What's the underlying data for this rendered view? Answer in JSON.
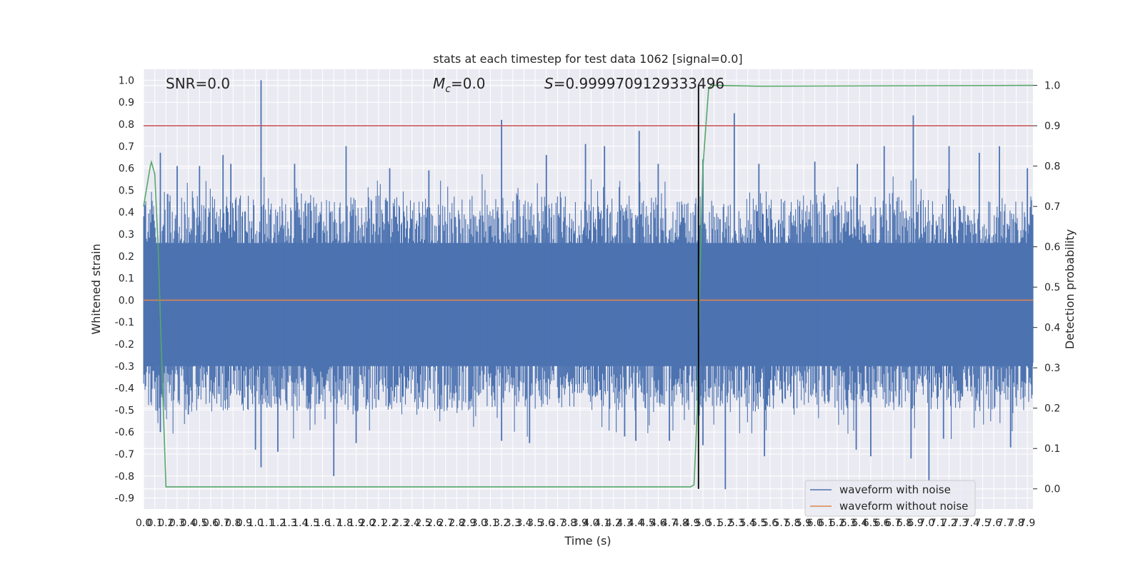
{
  "chart_data": {
    "type": "line",
    "title": "stats at each timestep for test data 1062 [signal=0.0]",
    "xlabel": "Time (s)",
    "ylabel_left": "Whitened strain",
    "ylabel_right": "Detection probability",
    "xlim": [
      0.0,
      7.95
    ],
    "ylim_left": [
      -0.95,
      1.05
    ],
    "ylim_right": [
      -0.05,
      1.04
    ],
    "x_ticks": [
      "0.0",
      "0.1",
      "0.2",
      "0.3",
      "0.4",
      "0.5",
      "0.6",
      "0.7",
      "0.8",
      "0.9",
      "1.0",
      "1.1",
      "1.2",
      "1.3",
      "1.4",
      "1.5",
      "1.6",
      "1.7",
      "1.8",
      "1.9",
      "2.0",
      "2.1",
      "2.2",
      "2.3",
      "2.4",
      "2.5",
      "2.6",
      "2.7",
      "2.8",
      "2.9",
      "3.0",
      "3.1",
      "3.2",
      "3.3",
      "3.4",
      "3.5",
      "3.6",
      "3.7",
      "3.8",
      "3.9",
      "4.0",
      "4.1",
      "4.2",
      "4.3",
      "4.4",
      "4.5",
      "4.6",
      "4.7",
      "4.8",
      "4.9",
      "5.0",
      "5.1",
      "5.2",
      "5.3",
      "5.4",
      "5.5",
      "5.6",
      "5.7",
      "5.8",
      "5.9",
      "6.0",
      "6.1",
      "6.2",
      "6.3",
      "6.4",
      "6.5",
      "6.6",
      "6.7",
      "6.8",
      "6.9",
      "7.0",
      "7.1",
      "7.2",
      "7.3",
      "7.4",
      "7.5",
      "7.6",
      "7.7",
      "7.8",
      "7.9"
    ],
    "y_ticks_left": [
      "1.0",
      "0.9",
      "0.8",
      "0.7",
      "0.6",
      "0.5",
      "0.4",
      "0.3",
      "0.2",
      "0.1",
      "0.0",
      "-0.1",
      "-0.2",
      "-0.3",
      "-0.4",
      "-0.5",
      "-0.6",
      "-0.7",
      "-0.8",
      "-0.9"
    ],
    "y_ticks_right": [
      "1.0",
      "0.9",
      "0.8",
      "0.7",
      "0.6",
      "0.5",
      "0.4",
      "0.3",
      "0.2",
      "0.1",
      "0.0"
    ],
    "annotations": {
      "snr": "SNR=0.0",
      "mc": "=0.0",
      "mc_symbol": "M",
      "mc_sub": "c",
      "s": "=0.9999709129333496",
      "s_symbol": "S"
    },
    "legend": {
      "placement": "lower-right",
      "entries": [
        "waveform with noise",
        "waveform without noise"
      ]
    },
    "colors": {
      "noise": "#4c72b0",
      "clean": "#dd8452",
      "prob": "#55a868",
      "threshold": "#c44e52",
      "marker": "#000000"
    },
    "threshold_probability": 0.9,
    "vertical_marker_x": 4.96,
    "series": [
      {
        "name": "waveform with noise",
        "envelope_upper": [
          [
            0.0,
            0.4
          ],
          [
            0.2,
            0.45
          ],
          [
            0.5,
            0.42
          ],
          [
            1.0,
            0.43
          ],
          [
            1.5,
            0.42
          ],
          [
            2.0,
            0.43
          ],
          [
            2.5,
            0.42
          ],
          [
            3.0,
            0.43
          ],
          [
            3.5,
            0.42
          ],
          [
            4.0,
            0.43
          ],
          [
            4.5,
            0.42
          ],
          [
            5.0,
            0.43
          ],
          [
            5.5,
            0.42
          ],
          [
            6.0,
            0.43
          ],
          [
            6.5,
            0.42
          ],
          [
            7.0,
            0.43
          ],
          [
            7.5,
            0.42
          ],
          [
            7.95,
            0.42
          ]
        ],
        "peaks": [
          [
            0.15,
            0.67
          ],
          [
            0.3,
            0.61
          ],
          [
            0.5,
            0.61
          ],
          [
            0.71,
            0.66
          ],
          [
            0.78,
            0.62
          ],
          [
            1.05,
            1.0
          ],
          [
            1.35,
            0.62
          ],
          [
            1.81,
            0.7
          ],
          [
            2.2,
            0.6
          ],
          [
            2.55,
            0.59
          ],
          [
            3.2,
            0.82
          ],
          [
            3.6,
            0.66
          ],
          [
            3.95,
            0.71
          ],
          [
            4.12,
            0.7
          ],
          [
            4.43,
            0.77
          ],
          [
            4.6,
            0.62
          ],
          [
            5.0,
            0.64
          ],
          [
            5.28,
            0.85
          ],
          [
            5.5,
            0.62
          ],
          [
            6.0,
            0.63
          ],
          [
            6.38,
            0.62
          ],
          [
            6.62,
            0.7
          ],
          [
            6.88,
            0.84
          ],
          [
            7.2,
            0.7
          ],
          [
            7.47,
            0.67
          ],
          [
            7.65,
            0.7
          ],
          [
            7.9,
            0.6
          ]
        ],
        "troughs": [
          [
            0.15,
            -0.6
          ],
          [
            0.4,
            -0.52
          ],
          [
            1.0,
            -0.68
          ],
          [
            1.05,
            -0.76
          ],
          [
            1.2,
            -0.69
          ],
          [
            1.7,
            -0.8
          ],
          [
            1.9,
            -0.65
          ],
          [
            3.2,
            -0.64
          ],
          [
            3.45,
            -0.65
          ],
          [
            4.3,
            -0.62
          ],
          [
            4.4,
            -0.64
          ],
          [
            4.7,
            -0.64
          ],
          [
            5.0,
            -0.66
          ],
          [
            5.2,
            -0.86
          ],
          [
            5.55,
            -0.71
          ],
          [
            6.37,
            -0.68
          ],
          [
            6.5,
            -0.71
          ],
          [
            6.86,
            -0.72
          ],
          [
            7.02,
            -0.82
          ],
          [
            7.15,
            -0.63
          ],
          [
            7.75,
            -0.67
          ]
        ],
        "envelope_lower": [
          [
            0.0,
            -0.3
          ],
          [
            0.5,
            -0.31
          ],
          [
            1.0,
            -0.3
          ],
          [
            1.5,
            -0.31
          ],
          [
            2.0,
            -0.3
          ],
          [
            2.5,
            -0.31
          ],
          [
            3.0,
            -0.3
          ],
          [
            3.5,
            -0.31
          ],
          [
            4.0,
            -0.3
          ],
          [
            4.5,
            -0.31
          ],
          [
            5.0,
            -0.3
          ],
          [
            5.5,
            -0.31
          ],
          [
            6.0,
            -0.3
          ],
          [
            6.5,
            -0.31
          ],
          [
            7.0,
            -0.3
          ],
          [
            7.5,
            -0.31
          ],
          [
            7.95,
            -0.3
          ]
        ]
      },
      {
        "name": "waveform without noise",
        "x": [
          0.0,
          7.95
        ],
        "y": [
          0.0,
          0.0
        ]
      },
      {
        "name": "detection probability",
        "x": [
          0.0,
          0.03,
          0.06,
          0.07,
          0.1,
          0.13,
          0.17,
          0.2,
          4.5,
          4.89,
          4.92,
          4.95,
          4.97,
          5.0,
          5.05,
          5.07,
          5.1,
          5.15,
          5.5,
          7.95
        ],
        "y": [
          0.7,
          0.75,
          0.8,
          0.81,
          0.78,
          0.6,
          0.25,
          0.005,
          0.005,
          0.005,
          0.01,
          0.2,
          0.5,
          0.8,
          0.99,
          1.0,
          1.0,
          1.0,
          0.998,
          1.0
        ]
      }
    ]
  }
}
